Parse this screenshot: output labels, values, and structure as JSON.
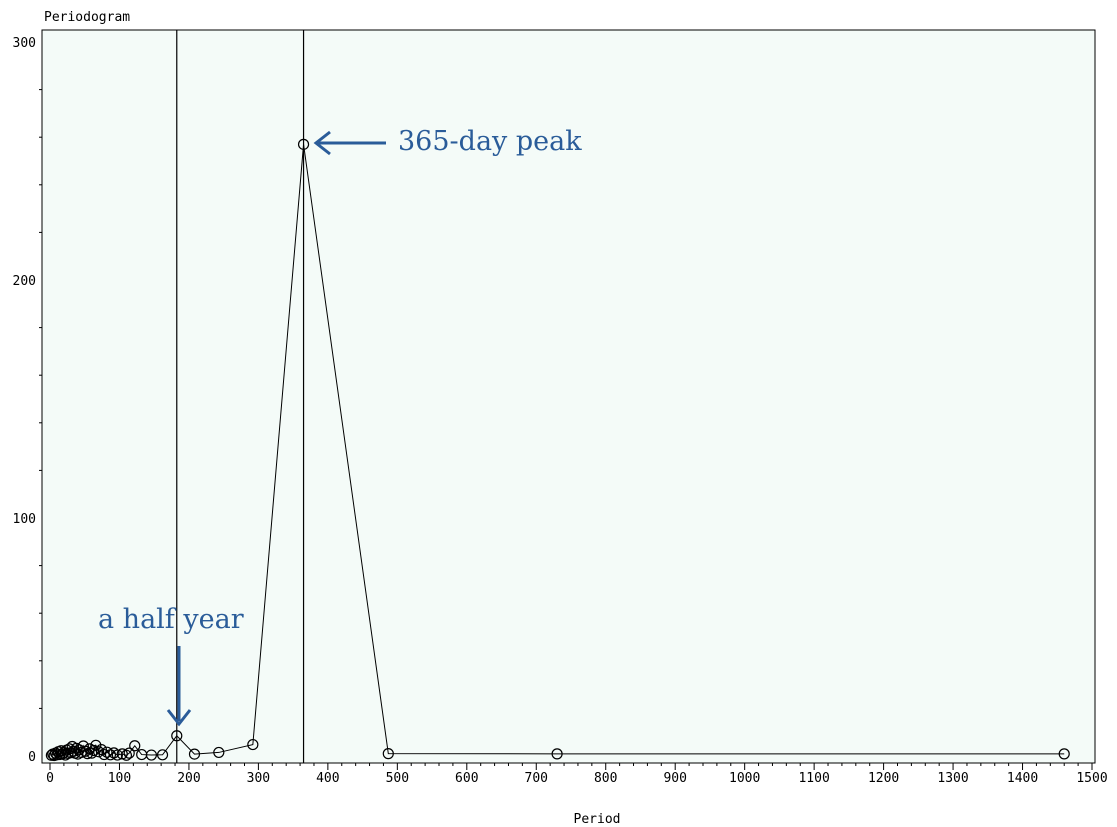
{
  "chart_data": {
    "type": "line",
    "title": "",
    "ylabel": "Periodogram",
    "xlabel": "Period",
    "xlim": [
      0,
      1500
    ],
    "ylim": [
      0,
      300
    ],
    "x_ticks": [
      0,
      100,
      200,
      300,
      400,
      500,
      600,
      700,
      800,
      900,
      1000,
      1100,
      1200,
      1300,
      1400,
      1500
    ],
    "y_ticks": [
      0,
      100,
      200,
      300
    ],
    "grid": false,
    "reference_lines_x": [
      182.5,
      365
    ],
    "series": [
      {
        "marker": "open-circle",
        "points": [
          [
            2,
            0.3
          ],
          [
            4,
            0.8
          ],
          [
            6,
            0.2
          ],
          [
            8,
            1.2
          ],
          [
            10,
            0.5
          ],
          [
            12,
            1.8
          ],
          [
            14,
            0.6
          ],
          [
            16,
            2.2
          ],
          [
            18,
            0.9
          ],
          [
            20,
            1.5
          ],
          [
            22,
            0.4
          ],
          [
            24,
            2.5
          ],
          [
            26,
            1.1
          ],
          [
            28,
            3.0
          ],
          [
            30,
            1.4
          ],
          [
            32,
            4.0
          ],
          [
            34,
            2.0
          ],
          [
            36,
            1.2
          ],
          [
            38,
            3.2
          ],
          [
            40,
            0.8
          ],
          [
            42,
            2.6
          ],
          [
            45,
            1.5
          ],
          [
            48,
            4.2
          ],
          [
            51,
            2.0
          ],
          [
            54,
            1.0
          ],
          [
            57,
            3.0
          ],
          [
            60,
            1.2
          ],
          [
            63,
            2.3
          ],
          [
            66,
            4.5
          ],
          [
            70,
            1.8
          ],
          [
            74,
            2.7
          ],
          [
            78,
            0.6
          ],
          [
            82,
            1.6
          ],
          [
            87,
            0.5
          ],
          [
            92,
            1.3
          ],
          [
            97,
            0.4
          ],
          [
            104,
            0.9
          ],
          [
            110,
            0.3
          ],
          [
            114,
            1.2
          ],
          [
            122,
            4.3
          ],
          [
            132,
            0.6
          ],
          [
            146,
            0.4
          ],
          [
            162,
            0.5
          ],
          [
            182.5,
            8.5
          ],
          [
            208,
            0.8
          ],
          [
            243,
            1.5
          ],
          [
            292,
            4.8
          ],
          [
            365,
            257
          ],
          [
            487,
            1.0
          ],
          [
            730,
            0.9
          ],
          [
            1460,
            0.9
          ]
        ]
      }
    ],
    "annotations": [
      {
        "text": "365-day peak",
        "target": [
          365,
          257
        ]
      },
      {
        "text": "a half year",
        "target": [
          182.5,
          8.5
        ]
      }
    ]
  }
}
